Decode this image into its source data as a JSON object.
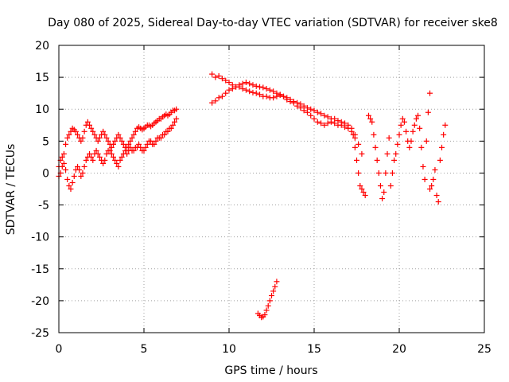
{
  "chart_data": {
    "type": "scatter",
    "title": "Day 080 of 2025, Sidereal Day-to-day VTEC variation (SDTVAR) for receiver ske8",
    "xlabel": "GPS time / hours",
    "ylabel": "SDTVAR / TECUs",
    "xlim": [
      0,
      25
    ],
    "ylim": [
      -25,
      20
    ],
    "xticks": [
      0,
      5,
      10,
      15,
      20,
      25
    ],
    "yticks": [
      20,
      15,
      10,
      5,
      0,
      -5,
      -10,
      -15,
      -20,
      -25
    ],
    "grid": true,
    "marker": "plus",
    "color": "#ff0000",
    "series": [
      {
        "name": "segment-1",
        "x": [
          0.0,
          0.1,
          0.2,
          0.3,
          0.4,
          0.5,
          0.6,
          0.7,
          0.8,
          0.9,
          1.0,
          1.1,
          1.2,
          1.3,
          1.4,
          1.5,
          1.6,
          1.7,
          1.8,
          1.9,
          2.0,
          2.1,
          2.2,
          2.3,
          2.4,
          2.5,
          2.6,
          2.7,
          2.8,
          2.9,
          3.0,
          3.1,
          3.2,
          3.3,
          3.4,
          3.5,
          3.6,
          3.7,
          3.8,
          3.9,
          4.0,
          4.1,
          4.2,
          4.3,
          4.4,
          4.5,
          4.6,
          4.7,
          4.8,
          4.9,
          5.0,
          5.1,
          5.2,
          5.3,
          5.4,
          5.5,
          5.6,
          5.7,
          5.8,
          5.9,
          6.0,
          6.1,
          6.2,
          6.3,
          6.4,
          6.5,
          6.6,
          6.7,
          6.8,
          6.9
        ],
        "y": [
          1.0,
          2.0,
          2.5,
          3.0,
          4.5,
          5.5,
          6.0,
          6.5,
          7.0,
          6.8,
          6.5,
          6.0,
          5.5,
          5.0,
          5.5,
          6.5,
          7.5,
          8.0,
          7.5,
          7.0,
          6.5,
          6.0,
          5.5,
          5.0,
          5.5,
          6.0,
          6.5,
          6.0,
          5.5,
          5.0,
          4.5,
          4.0,
          4.5,
          5.0,
          5.5,
          6.0,
          5.5,
          5.0,
          4.5,
          4.0,
          4.0,
          4.5,
          5.0,
          5.5,
          6.0,
          6.5,
          7.0,
          7.2,
          7.0,
          6.8,
          7.0,
          7.2,
          7.5,
          7.5,
          7.3,
          7.5,
          7.8,
          8.0,
          8.2,
          8.5,
          8.5,
          8.8,
          9.0,
          9.2,
          9.0,
          9.2,
          9.5,
          9.8,
          9.8,
          10.0
        ]
      },
      {
        "name": "segment-2",
        "x": [
          0.0,
          0.1,
          0.2,
          0.3,
          0.4,
          0.5,
          0.6,
          0.7,
          0.8,
          0.9,
          1.0,
          1.1,
          1.2,
          1.3,
          1.4,
          1.5,
          1.6,
          1.7,
          1.8,
          1.9,
          2.0,
          2.1,
          2.2,
          2.3,
          2.4,
          2.5,
          2.6,
          2.7,
          2.8,
          2.9,
          3.0,
          3.1,
          3.2,
          3.3,
          3.4,
          3.5,
          3.6,
          3.7,
          3.8,
          3.9,
          4.0,
          4.1,
          4.2,
          4.3,
          4.4,
          4.5,
          4.6,
          4.7,
          4.8,
          4.9,
          5.0,
          5.1,
          5.2,
          5.3,
          5.4,
          5.5,
          5.6,
          5.7,
          5.8,
          5.9,
          6.0,
          6.1,
          6.2,
          6.3,
          6.4,
          6.5,
          6.6,
          6.7,
          6.8,
          6.9
        ],
        "y": [
          -0.5,
          0.0,
          1.0,
          1.5,
          0.5,
          -1.0,
          -2.0,
          -2.5,
          -1.5,
          -0.5,
          0.5,
          1.0,
          0.5,
          -0.5,
          0.0,
          1.0,
          2.0,
          2.5,
          3.0,
          2.5,
          2.0,
          3.0,
          3.5,
          3.0,
          2.5,
          2.0,
          1.5,
          2.0,
          3.0,
          3.5,
          3.5,
          3.0,
          2.5,
          2.0,
          1.5,
          1.0,
          2.0,
          2.5,
          3.0,
          3.5,
          3.0,
          3.5,
          4.0,
          3.5,
          3.5,
          4.0,
          4.0,
          4.5,
          4.0,
          3.5,
          3.5,
          4.0,
          4.5,
          5.0,
          5.0,
          4.5,
          4.5,
          5.0,
          5.5,
          5.5,
          5.5,
          6.0,
          6.0,
          6.5,
          6.5,
          7.0,
          7.0,
          7.5,
          8.0,
          8.5
        ]
      },
      {
        "name": "segment-3",
        "x": [
          9.0,
          9.2,
          9.4,
          9.6,
          9.8,
          10.0,
          10.2,
          10.4,
          10.6,
          10.8,
          11.0,
          11.2,
          11.4,
          11.6,
          11.8,
          12.0,
          12.2,
          12.4,
          12.6,
          12.8,
          13.0,
          13.2,
          13.4,
          13.6,
          13.8,
          14.0,
          14.2,
          14.4,
          14.6,
          14.8,
          15.0,
          15.2,
          15.4,
          15.6,
          15.8,
          16.0,
          16.2,
          16.4,
          16.6,
          16.8,
          17.0,
          17.2,
          17.4,
          17.6,
          17.8
        ],
        "y": [
          15.5,
          15.0,
          15.2,
          14.8,
          14.5,
          14.2,
          13.8,
          13.5,
          13.8,
          14.0,
          14.2,
          14.0,
          13.8,
          13.6,
          13.5,
          13.4,
          13.2,
          13.0,
          12.8,
          12.5,
          12.3,
          12.0,
          11.8,
          11.5,
          11.2,
          11.0,
          10.8,
          10.5,
          10.2,
          10.0,
          9.8,
          9.5,
          9.3,
          9.0,
          8.8,
          8.5,
          8.5,
          8.2,
          8.0,
          7.8,
          7.5,
          7.0,
          6.0,
          4.5,
          3.0
        ]
      },
      {
        "name": "segment-4",
        "x": [
          9.0,
          9.2,
          9.4,
          9.6,
          9.8,
          10.0,
          10.2,
          10.4,
          10.6,
          10.8,
          11.0,
          11.2,
          11.4,
          11.6,
          11.8,
          12.0,
          12.2,
          12.4,
          12.6,
          12.8,
          13.0,
          13.2,
          13.4,
          13.6,
          13.8,
          14.0,
          14.2,
          14.4,
          14.6,
          14.8,
          15.0,
          15.2,
          15.4,
          15.6,
          15.8,
          16.0,
          16.2,
          16.4,
          16.6,
          16.8,
          17.0,
          17.2,
          17.4
        ],
        "y": [
          11.0,
          11.3,
          11.8,
          12.0,
          12.5,
          13.0,
          13.2,
          13.5,
          13.5,
          13.2,
          13.0,
          12.8,
          12.6,
          12.5,
          12.3,
          12.0,
          12.0,
          11.8,
          11.8,
          12.0,
          12.2,
          12.0,
          11.5,
          11.2,
          11.0,
          10.5,
          10.2,
          9.8,
          9.5,
          9.0,
          8.5,
          8.0,
          7.8,
          7.5,
          7.8,
          8.0,
          7.8,
          7.5,
          7.5,
          7.2,
          7.0,
          6.5,
          5.5
        ]
      },
      {
        "name": "segment-5",
        "x": [
          11.7,
          11.8,
          11.9,
          12.0,
          12.1,
          12.2,
          12.3,
          12.4,
          12.5,
          12.6,
          12.7,
          12.8
        ],
        "y": [
          -22.0,
          -22.3,
          -22.6,
          -22.5,
          -22.2,
          -21.5,
          -20.8,
          -20.0,
          -19.2,
          -18.5,
          -17.8,
          -17.0
        ]
      },
      {
        "name": "segment-6",
        "x": [
          17.3,
          17.4,
          17.5,
          17.6,
          17.7,
          17.8,
          17.9,
          18.0
        ],
        "y": [
          6.0,
          4.0,
          2.0,
          0.0,
          -2.0,
          -2.5,
          -3.0,
          -3.5
        ]
      },
      {
        "name": "segment-7",
        "x": [
          18.2,
          18.3,
          18.4,
          18.5,
          18.6,
          18.7,
          18.8,
          18.9,
          19.0,
          19.1,
          19.2,
          19.3,
          19.4
        ],
        "y": [
          9.0,
          8.5,
          8.0,
          6.0,
          4.0,
          2.0,
          0.0,
          -2.0,
          -4.0,
          -3.0,
          0.0,
          3.0,
          5.5
        ]
      },
      {
        "name": "segment-8",
        "x": [
          19.5,
          19.6,
          19.7,
          19.8,
          19.9,
          20.0,
          20.1,
          20.2,
          20.3,
          20.4,
          20.5,
          20.6,
          20.7,
          20.8,
          20.9,
          21.0,
          21.1,
          21.2,
          21.3,
          21.4,
          21.5,
          21.6,
          21.7,
          21.8
        ],
        "y": [
          -2.0,
          0.0,
          2.0,
          3.0,
          4.5,
          6.0,
          7.5,
          8.5,
          8.0,
          6.5,
          5.0,
          4.0,
          5.0,
          6.5,
          7.5,
          8.5,
          9.0,
          7.0,
          4.0,
          1.0,
          -1.0,
          5.0,
          9.5,
          12.5
        ]
      },
      {
        "name": "segment-9",
        "x": [
          21.8,
          21.9,
          22.0,
          22.1,
          22.2,
          22.3,
          22.4,
          22.5,
          22.6,
          22.7
        ],
        "y": [
          -2.5,
          -2.0,
          -1.0,
          0.5,
          -3.5,
          -4.5,
          2.0,
          4.0,
          6.0,
          7.5
        ]
      }
    ]
  }
}
